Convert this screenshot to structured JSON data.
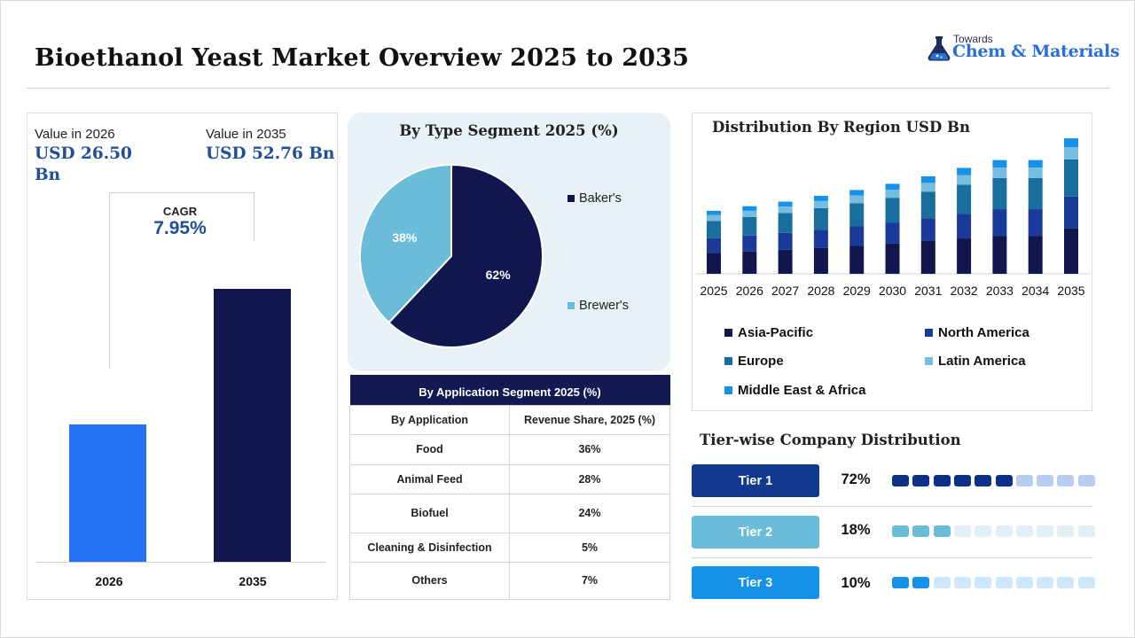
{
  "header": {
    "title": "Bioethanol Yeast Market Overview 2025 to 2035",
    "logo_small": "Towards",
    "logo_big": "Chem & Materials"
  },
  "value_panel": {
    "label_2026": "Value in 2026",
    "value_2026_line1": "USD 26.50",
    "value_2026_line2": "Bn",
    "label_2035": "Value in 2035",
    "value_2035": "USD 52.76 Bn",
    "cagr_label": "CAGR",
    "cagr_value": "7.95%",
    "bars": [
      {
        "year": "2026",
        "value": 26.5,
        "color": "#2672f5"
      },
      {
        "year": "2035",
        "value": 52.76,
        "color": "#10174e"
      }
    ]
  },
  "type_segment": {
    "title": "By Type Segment 2025 (%)",
    "slices": [
      {
        "name": "Baker's",
        "value": 62,
        "label": "62%",
        "color": "#10174e"
      },
      {
        "name": "Brewer's",
        "value": 38,
        "label": "38%",
        "color": "#6bbcd9"
      }
    ]
  },
  "application_table": {
    "title": "By Application Segment 2025 (%)",
    "col1": "By Application",
    "col2": "Revenue Share, 2025 (%)",
    "rows": [
      {
        "name": "Food",
        "share": "36%"
      },
      {
        "name": "Animal Feed",
        "share": "28%"
      },
      {
        "name": "Biofuel",
        "share": "24%"
      },
      {
        "name": "Cleaning & Disinfection",
        "share": "5%"
      },
      {
        "name": "Others",
        "share": "7%"
      }
    ]
  },
  "chart_data": {
    "type": "bar",
    "stacked": true,
    "title": "Distribution By Region USD Bn",
    "categories": [
      "2025",
      "2026",
      "2027",
      "2028",
      "2029",
      "2030",
      "2031",
      "2032",
      "2033",
      "2034",
      "2035"
    ],
    "series": [
      {
        "name": "Asia-Pacific",
        "color": "#10174e",
        "values": [
          6.5,
          6.9,
          7.4,
          8.0,
          8.6,
          9.3,
          10.1,
          10.9,
          11.7,
          11.7,
          14.0
        ]
      },
      {
        "name": "North America",
        "color": "#1a3a99",
        "values": [
          4.5,
          4.9,
          5.2,
          5.6,
          6.0,
          6.5,
          7.0,
          7.6,
          8.2,
          8.2,
          9.8
        ]
      },
      {
        "name": "Europe",
        "color": "#186e9c",
        "values": [
          5.3,
          5.7,
          6.1,
          6.6,
          7.1,
          7.6,
          8.2,
          8.9,
          9.6,
          9.6,
          11.4
        ]
      },
      {
        "name": "Latin America",
        "color": "#76bde0",
        "values": [
          1.8,
          1.9,
          2.0,
          2.2,
          2.4,
          2.5,
          2.7,
          3.0,
          3.2,
          3.2,
          3.8
        ]
      },
      {
        "name": "Middle East & Africa",
        "color": "#1591ea",
        "values": [
          1.3,
          1.4,
          1.5,
          1.6,
          1.7,
          1.8,
          2.0,
          2.2,
          2.3,
          2.3,
          2.7
        ]
      }
    ],
    "ylim": [
      0,
      45
    ],
    "grid": false,
    "legend": "bottom"
  },
  "tiers": {
    "title": "Tier-wise Company Distribution",
    "items": [
      {
        "label": "Tier 1",
        "pct": "72%",
        "filled": 6,
        "color": "#113a8f",
        "dot_on": "#0d318a",
        "dot_off": "#b7cdf2"
      },
      {
        "label": "Tier 2",
        "pct": "18%",
        "filled": 3,
        "color": "#6bbcd9",
        "dot_on": "#6bbcd9",
        "dot_off": "#e1f0f7"
      },
      {
        "label": "Tier 3",
        "pct": "10%",
        "filled": 2,
        "color": "#1591ea",
        "dot_on": "#1591ea",
        "dot_off": "#cfe7fb"
      }
    ],
    "dot_count": 10
  }
}
